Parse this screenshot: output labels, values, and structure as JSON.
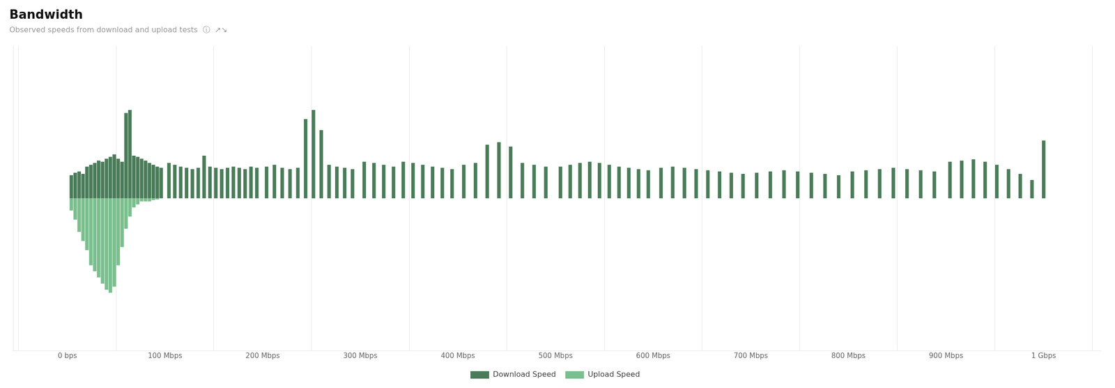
{
  "chart_data": {
    "type": "bar",
    "title": "Bandwidth",
    "subtitle": "Observed speeds from download and upload tests  ⓘ  ↗↘",
    "x": [
      4,
      8,
      12,
      16,
      20,
      24,
      28,
      32,
      36,
      40,
      44,
      48,
      52,
      56,
      60,
      64,
      68,
      72,
      76,
      80,
      84,
      88,
      92,
      96,
      104,
      110,
      116,
      122,
      128,
      134,
      140,
      146,
      152,
      158,
      164,
      170,
      176,
      182,
      188,
      194,
      204,
      212,
      220,
      228,
      236,
      244,
      252,
      260,
      268,
      276,
      284,
      292,
      304,
      314,
      324,
      334,
      344,
      354,
      364,
      374,
      384,
      394,
      406,
      418,
      430,
      442,
      454,
      466,
      478,
      490,
      505,
      515,
      525,
      535,
      545,
      555,
      565,
      575,
      585,
      595,
      608,
      620,
      632,
      644,
      656,
      668,
      680,
      692,
      706,
      720,
      734,
      748,
      762,
      776,
      790,
      804,
      818,
      832,
      846,
      860,
      874,
      888,
      904,
      916,
      928,
      940,
      952,
      964,
      976,
      988,
      1000
    ],
    "series": [
      {
        "name": "Download Speed",
        "color": "#4a7c59",
        "values": [
          38,
          42,
          44,
          40,
          52,
          55,
          58,
          62,
          60,
          65,
          68,
          72,
          65,
          60,
          140,
          145,
          70,
          68,
          65,
          62,
          58,
          55,
          52,
          50,
          58,
          55,
          52,
          50,
          48,
          50,
          70,
          52,
          50,
          48,
          50,
          52,
          50,
          48,
          52,
          50,
          52,
          55,
          50,
          48,
          50,
          130,
          145,
          112,
          55,
          52,
          50,
          48,
          60,
          58,
          55,
          52,
          60,
          58,
          55,
          52,
          50,
          48,
          55,
          58,
          88,
          92,
          85,
          58,
          55,
          52,
          52,
          55,
          58,
          60,
          58,
          55,
          52,
          50,
          48,
          46,
          50,
          52,
          50,
          48,
          46,
          44,
          42,
          40,
          42,
          44,
          46,
          44,
          42,
          40,
          38,
          44,
          46,
          48,
          50,
          48,
          46,
          44,
          60,
          62,
          64,
          60,
          55,
          48,
          40,
          30,
          95
        ]
      },
      {
        "name": "Upload Speed",
        "color": "#7abf8e",
        "values": [
          -20,
          -35,
          -55,
          -70,
          -85,
          -110,
          -120,
          -130,
          -140,
          -150,
          -155,
          -145,
          -110,
          -80,
          -50,
          -30,
          -15,
          -10,
          -5,
          -5,
          -5,
          -3,
          -2,
          0,
          0,
          0,
          0,
          0,
          0,
          0,
          0,
          0,
          0,
          0,
          0,
          0,
          0,
          0,
          0,
          0,
          0,
          0,
          0,
          0,
          0,
          0,
          0,
          0,
          0,
          0,
          0,
          0,
          0,
          0,
          0,
          0,
          0,
          0,
          0,
          0,
          0,
          0,
          0,
          0,
          0,
          0,
          0,
          0,
          0,
          0,
          0,
          0,
          0,
          0,
          0,
          0,
          0,
          0,
          0,
          0,
          0,
          0,
          0,
          0,
          0,
          0,
          0,
          0,
          0,
          0,
          0,
          0,
          0,
          0,
          0,
          0,
          0,
          0,
          0,
          0,
          0,
          0,
          0,
          0,
          0,
          0,
          0,
          0,
          0,
          0,
          0
        ]
      }
    ],
    "xlim": [
      -5,
      1008
    ],
    "xticks": [
      {
        "value": 0,
        "label": "0 bps"
      },
      {
        "value": 100,
        "label": "100 Mbps"
      },
      {
        "value": 200,
        "label": "200 Mbps"
      },
      {
        "value": 300,
        "label": "300 Mbps"
      },
      {
        "value": 400,
        "label": "400 Mbps"
      },
      {
        "value": 500,
        "label": "500 Mbps"
      },
      {
        "value": 600,
        "label": "600 Mbps"
      },
      {
        "value": 700,
        "label": "700 Mbps"
      },
      {
        "value": 800,
        "label": "800 Mbps"
      },
      {
        "value": 900,
        "label": "900 Mbps"
      },
      {
        "value": 1000,
        "label": "1 Gbps"
      }
    ],
    "ylim": [
      -250,
      250
    ],
    "tick_labels": "x",
    "grid": true,
    "legend": "bottom"
  }
}
